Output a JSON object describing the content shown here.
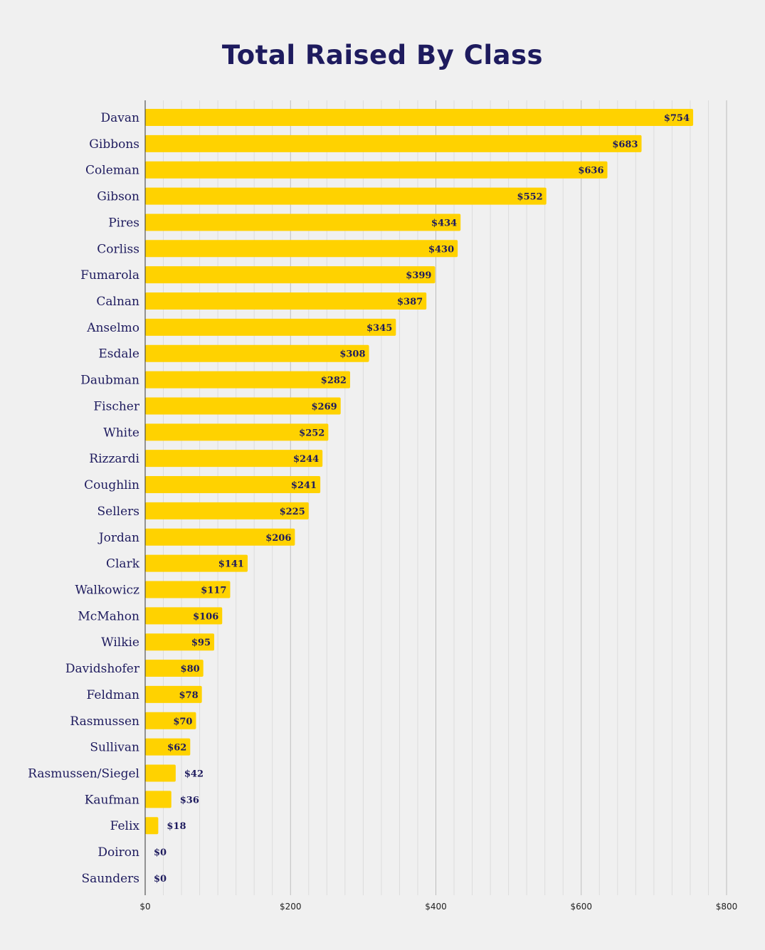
{
  "chart_data": {
    "type": "bar",
    "orientation": "horizontal",
    "title": "Total Raised By Class",
    "xlabel": "",
    "ylabel": "",
    "value_prefix": "$",
    "xlim": [
      0,
      800
    ],
    "x_ticks": [
      0,
      200,
      400,
      600,
      800
    ],
    "x_tick_labels": [
      "$0",
      "$200",
      "$400",
      "$600",
      "$800"
    ],
    "grid": true,
    "categories": [
      "Davan",
      "Gibbons",
      "Coleman",
      "Gibson",
      "Pires",
      "Corliss",
      "Fumarola",
      "Calnan",
      "Anselmo",
      "Esdale",
      "Daubman",
      "Fischer",
      "White",
      "Rizzardi",
      "Coughlin",
      "Sellers",
      "Jordan",
      "Clark",
      "Walkowicz",
      "McMahon",
      "Wilkie",
      "Davidshofer",
      "Feldman",
      "Rasmussen",
      "Sullivan",
      "Rasmussen/Siegel",
      "Kaufman",
      "Felix",
      "Doiron",
      "Saunders"
    ],
    "values": [
      754,
      683,
      636,
      552,
      434,
      430,
      399,
      387,
      345,
      308,
      282,
      269,
      252,
      244,
      241,
      225,
      206,
      141,
      117,
      106,
      95,
      80,
      78,
      70,
      62,
      42,
      36,
      18,
      0,
      0
    ],
    "value_labels": [
      "$754",
      "$683",
      "$636",
      "$552",
      "$434",
      "$430",
      "$399",
      "$387",
      "$345",
      "$308",
      "$282",
      "$269",
      "$252",
      "$244",
      "$241",
      "$225",
      "$206",
      "$141",
      "$117",
      "$106",
      "$95",
      "$80",
      "$78",
      "$70",
      "$62",
      "$42",
      "$36",
      "$18",
      "$0",
      "$0"
    ],
    "colors": {
      "bar": "#ffd200",
      "text": "#1e1b5e",
      "background": "#f0f0f0",
      "grid_major": "#bdbdbd",
      "grid_minor": "#dcdcdc",
      "axis": "#333333"
    }
  }
}
